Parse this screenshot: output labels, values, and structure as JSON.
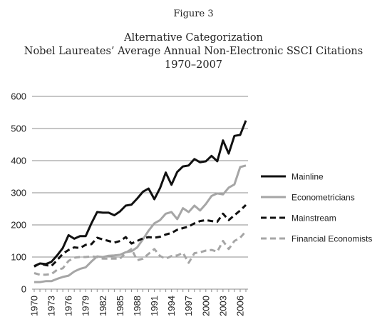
{
  "figure_label": "Figure 3",
  "title_lines": [
    "Alternative Categorization",
    "Nobel Laureates’ Average Annual Non-Electronic SSCI Citations",
    "1970–2007"
  ],
  "chart_data": {
    "type": "line",
    "title": "Alternative Categorization Nobel Laureates’ Average Annual Non-Electronic SSCI Citations 1970–2007",
    "xlabel": "",
    "ylabel": "",
    "x": [
      1970,
      1971,
      1972,
      1973,
      1974,
      1975,
      1976,
      1977,
      1978,
      1979,
      1980,
      1981,
      1982,
      1983,
      1984,
      1985,
      1986,
      1987,
      1988,
      1989,
      1990,
      1991,
      1992,
      1993,
      1994,
      1995,
      1996,
      1997,
      1998,
      1999,
      2000,
      2001,
      2002,
      2003,
      2004,
      2005,
      2006,
      2007
    ],
    "x_tick_labels": [
      "1970",
      "1973",
      "1976",
      "1979",
      "1982",
      "1985",
      "1988",
      "1991",
      "1994",
      "1997",
      "2000",
      "2003",
      "2006"
    ],
    "ylim": [
      0,
      600
    ],
    "y_ticks": [
      0,
      100,
      200,
      300,
      400,
      500,
      600
    ],
    "grid": "horizontal",
    "legend_position": "right",
    "series": [
      {
        "name": "Mainline",
        "color": "#111111",
        "dash": "solid",
        "values": [
          70,
          80,
          78,
          85,
          105,
          128,
          168,
          157,
          165,
          165,
          205,
          240,
          238,
          238,
          230,
          242,
          260,
          263,
          282,
          303,
          313,
          280,
          315,
          363,
          325,
          365,
          382,
          385,
          405,
          395,
          398,
          415,
          398,
          463,
          422,
          477,
          480,
          525
        ]
      },
      {
        "name": "Econometricians",
        "color": "#a6a6a6",
        "dash": "solid",
        "values": [
          22,
          22,
          25,
          25,
          32,
          38,
          42,
          55,
          63,
          68,
          86,
          102,
          100,
          104,
          105,
          107,
          115,
          118,
          130,
          155,
          182,
          205,
          215,
          235,
          240,
          218,
          252,
          240,
          260,
          245,
          265,
          290,
          298,
          295,
          316,
          326,
          380,
          385
        ]
      },
      {
        "name": "Mainstream",
        "color": "#111111",
        "dash": "dashed",
        "values": [
          72,
          80,
          75,
          72,
          90,
          110,
          122,
          130,
          128,
          138,
          140,
          160,
          155,
          150,
          145,
          150,
          162,
          142,
          150,
          158,
          162,
          160,
          163,
          170,
          175,
          185,
          190,
          195,
          205,
          212,
          215,
          212,
          210,
          235,
          215,
          230,
          245,
          262
        ]
      },
      {
        "name": "Financial Economists",
        "color": "#a6a6a6",
        "dash": "dashed",
        "values": [
          50,
          45,
          45,
          47,
          60,
          65,
          88,
          98,
          100,
          100,
          102,
          100,
          95,
          95,
          95,
          95,
          113,
          125,
          90,
          95,
          110,
          125,
          103,
          95,
          103,
          105,
          113,
          82,
          112,
          115,
          120,
          122,
          117,
          150,
          125,
          150,
          160,
          180
        ]
      }
    ]
  }
}
